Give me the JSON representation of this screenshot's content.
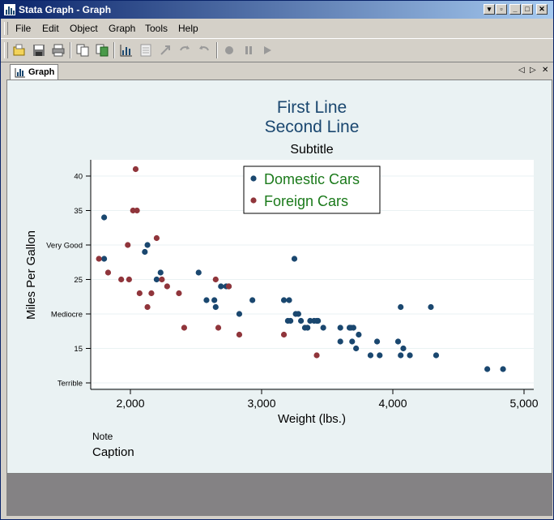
{
  "window": {
    "title": "Stata Graph - Graph"
  },
  "menu": [
    "File",
    "Edit",
    "Object",
    "Graph",
    "Tools",
    "Help"
  ],
  "tab": {
    "label": "Graph"
  },
  "icons": {
    "toolbar": [
      "open-icon",
      "save-icon",
      "print-icon",
      "copy-icon",
      "copy-graph-icon",
      "graph-editor-icon",
      "data-editor-icon",
      "pointer-icon",
      "undo-icon",
      "redo-icon",
      "record-icon",
      "pause-icon",
      "play-icon"
    ]
  },
  "colors": {
    "domestic": "#1a476f",
    "foreign": "#90353b",
    "title": "#1a476f",
    "legend_text": "#1b7a1b"
  },
  "chart_data": {
    "type": "scatter",
    "title_lines": [
      "First Line",
      "Second Line"
    ],
    "subtitle": "Subtitle",
    "xlabel": "Weight (lbs.)",
    "ylabel": "Miles Per Gallon",
    "note": "Note",
    "caption": "Caption",
    "xlim": [
      1700,
      5050
    ],
    "ylim": [
      12,
      43
    ],
    "x_ticks": [
      2000,
      3000,
      4000,
      5000
    ],
    "x_tick_labels": [
      "2,000",
      "3,000",
      "4,000",
      "5,000"
    ],
    "y_ticks": [
      10,
      15,
      20,
      25,
      30,
      35,
      40
    ],
    "y_tick_labels": [
      "Terrible",
      "15",
      "Mediocre",
      "25",
      "Very Good",
      "35",
      "40"
    ],
    "legend": {
      "position": "top-center",
      "entries": [
        "Domestic Cars",
        "Foreign Cars"
      ]
    },
    "grid": true,
    "series": [
      {
        "name": "Domestic Cars",
        "points": [
          [
            1800,
            34
          ],
          [
            1800,
            28
          ],
          [
            2110,
            29
          ],
          [
            2130,
            30
          ],
          [
            2200,
            25
          ],
          [
            2230,
            26
          ],
          [
            2520,
            26
          ],
          [
            2580,
            22
          ],
          [
            2640,
            22
          ],
          [
            2650,
            21
          ],
          [
            2690,
            24
          ],
          [
            2730,
            24
          ],
          [
            2750,
            24
          ],
          [
            2830,
            20
          ],
          [
            2930,
            22
          ],
          [
            3170,
            22
          ],
          [
            3200,
            19
          ],
          [
            3210,
            22
          ],
          [
            3220,
            19
          ],
          [
            3250,
            28
          ],
          [
            3260,
            20
          ],
          [
            3280,
            20
          ],
          [
            3300,
            19
          ],
          [
            3330,
            18
          ],
          [
            3350,
            18
          ],
          [
            3370,
            19
          ],
          [
            3400,
            19
          ],
          [
            3420,
            19
          ],
          [
            3430,
            19
          ],
          [
            3470,
            18
          ],
          [
            3600,
            18
          ],
          [
            3600,
            16
          ],
          [
            3670,
            18
          ],
          [
            3680,
            18
          ],
          [
            3690,
            16
          ],
          [
            3700,
            18
          ],
          [
            3720,
            15
          ],
          [
            3740,
            17
          ],
          [
            3830,
            14
          ],
          [
            3880,
            16
          ],
          [
            3900,
            14
          ],
          [
            4040,
            16
          ],
          [
            4060,
            14
          ],
          [
            4060,
            21
          ],
          [
            4080,
            15
          ],
          [
            4130,
            14
          ],
          [
            4290,
            21
          ],
          [
            4330,
            14
          ],
          [
            4720,
            12
          ],
          [
            4840,
            12
          ]
        ]
      },
      {
        "name": "Foreign Cars",
        "points": [
          [
            1760,
            28
          ],
          [
            1830,
            26
          ],
          [
            1930,
            25
          ],
          [
            1980,
            30
          ],
          [
            1990,
            25
          ],
          [
            2020,
            35
          ],
          [
            2040,
            41
          ],
          [
            2050,
            35
          ],
          [
            2070,
            23
          ],
          [
            2130,
            21
          ],
          [
            2160,
            23
          ],
          [
            2200,
            31
          ],
          [
            2240,
            25
          ],
          [
            2280,
            24
          ],
          [
            2370,
            23
          ],
          [
            2410,
            18
          ],
          [
            2650,
            25
          ],
          [
            2670,
            18
          ],
          [
            2750,
            24
          ],
          [
            2830,
            17
          ],
          [
            3170,
            17
          ],
          [
            3420,
            14
          ]
        ]
      }
    ]
  }
}
